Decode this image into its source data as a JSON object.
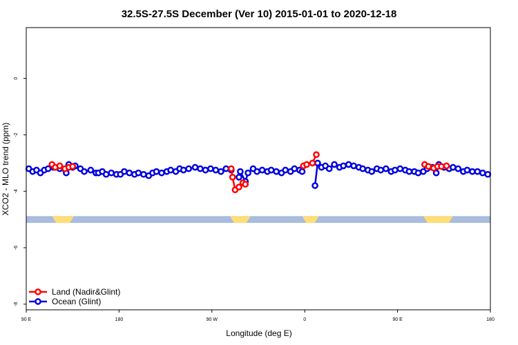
{
  "chart_data": {
    "type": "line",
    "title": "32.5S-27.5S December (Ver 10)   2015-01-01 to 2020-12-18",
    "xlabel": "Longitude (deg E)",
    "ylabel": "XCO2 - MLO trend (ppm)",
    "xlim": [
      90,
      450
    ],
    "ylim": [
      -8.2,
      1.8
    ],
    "x_ticks": [
      {
        "value": 90,
        "label": "90 E"
      },
      {
        "value": 162,
        "label": "180"
      },
      {
        "value": 234,
        "label": "90 W"
      },
      {
        "value": 306,
        "label": "0"
      },
      {
        "value": 378,
        "label": "90 E"
      },
      {
        "value": 450,
        "label": "180"
      }
    ],
    "y_ticks": [
      {
        "value": 0,
        "label": "0"
      },
      {
        "value": -2,
        "label": "-2"
      },
      {
        "value": -4,
        "label": "-4"
      },
      {
        "value": -6,
        "label": "-6"
      },
      {
        "value": -8,
        "label": "-8"
      }
    ],
    "grid": false,
    "legend_position": "bottom-left",
    "surface_band": {
      "y_top": -4.88,
      "y_bottom": -5.12,
      "ocean_color": "#a8bcdc",
      "land_color": "#ffdd77",
      "land_segments": [
        [
          110,
          127
        ],
        [
          248,
          264
        ],
        [
          304,
          317
        ],
        [
          398,
          421
        ]
      ]
    },
    "series": [
      {
        "name": "Land (Nadir&Glint)",
        "color": "#ff0000",
        "segments": [
          [
            [
              110,
              -3.05
            ],
            [
              112.5,
              -3.15
            ],
            [
              116,
              -3.1
            ],
            [
              120,
              -3.2
            ],
            [
              123,
              -3.15
            ],
            [
              126,
              -3.12
            ]
          ],
          [
            [
              249,
              -3.2
            ],
            [
              250,
              -3.5
            ],
            [
              252,
              -3.95
            ],
            [
              255,
              -3.85
            ],
            [
              258,
              -3.7
            ],
            [
              260,
              -3.75
            ]
          ],
          [
            [
              305,
              -3.1
            ],
            [
              307.5,
              -3.05
            ],
            [
              312,
              -3.0
            ],
            [
              315,
              -2.7
            ]
          ],
          [
            [
              399,
              -3.05
            ],
            [
              402,
              -3.12
            ],
            [
              406,
              -3.18
            ],
            [
              409,
              -3.12
            ],
            [
              412,
              -3.12
            ],
            [
              416,
              -3.1
            ]
          ]
        ]
      },
      {
        "name": "Ocean (Glint)",
        "color": "#0000dd",
        "segments": [
          [
            [
              92,
              -3.2
            ],
            [
              95,
              -3.3
            ],
            [
              98,
              -3.25
            ],
            [
              101,
              -3.35
            ],
            [
              104,
              -3.25
            ],
            [
              107,
              -3.2
            ],
            [
              111,
              -3.15
            ],
            [
              116,
              -3.2
            ],
            [
              121,
              -3.35
            ],
            [
              123,
              -3.05
            ],
            [
              126,
              -3.15
            ],
            [
              128,
              -3.1
            ],
            [
              132,
              -3.2
            ],
            [
              135,
              -3.3
            ],
            [
              140,
              -3.25
            ],
            [
              144,
              -3.35
            ],
            [
              146,
              -3.35
            ],
            [
              149,
              -3.3
            ],
            [
              152,
              -3.4
            ],
            [
              156,
              -3.35
            ],
            [
              160,
              -3.4
            ],
            [
              163,
              -3.4
            ],
            [
              166,
              -3.3
            ],
            [
              170,
              -3.35
            ],
            [
              174,
              -3.4
            ],
            [
              177,
              -3.35
            ],
            [
              181,
              -3.4
            ],
            [
              185,
              -3.45
            ],
            [
              188,
              -3.35
            ],
            [
              191,
              -3.3
            ],
            [
              195,
              -3.35
            ],
            [
              199,
              -3.3
            ],
            [
              202,
              -3.25
            ],
            [
              206,
              -3.3
            ],
            [
              209,
              -3.2
            ],
            [
              212,
              -3.25
            ],
            [
              216,
              -3.2
            ],
            [
              221,
              -3.15
            ],
            [
              225,
              -3.2
            ],
            [
              229,
              -3.25
            ],
            [
              233,
              -3.2
            ],
            [
              237,
              -3.25
            ],
            [
              241,
              -3.3
            ],
            [
              245,
              -3.2
            ],
            [
              249,
              -3.25
            ]
          ],
          [
            [
              255,
              -3.5
            ],
            [
              256,
              -3.3
            ],
            [
              260,
              -3.65
            ],
            [
              262,
              -3.35
            ],
            [
              266,
              -3.2
            ],
            [
              269,
              -3.3
            ],
            [
              273,
              -3.25
            ],
            [
              277,
              -3.3
            ],
            [
              280,
              -3.25
            ],
            [
              284,
              -3.3
            ],
            [
              288,
              -3.35
            ],
            [
              291,
              -3.25
            ],
            [
              295,
              -3.3
            ],
            [
              298,
              -3.2
            ],
            [
              302,
              -3.25
            ],
            [
              304,
              -3.3
            ]
          ],
          [
            [
              314,
              -3.8
            ],
            [
              316,
              -3.0
            ],
            [
              319,
              -3.15
            ],
            [
              322,
              -3.1
            ],
            [
              325,
              -3.2
            ],
            [
              329,
              -3.05
            ],
            [
              333,
              -3.15
            ],
            [
              336,
              -3.1
            ],
            [
              340,
              -3.05
            ],
            [
              344,
              -3.1
            ],
            [
              348,
              -3.15
            ],
            [
              351,
              -3.2
            ],
            [
              355,
              -3.25
            ],
            [
              358,
              -3.3
            ],
            [
              362,
              -3.2
            ],
            [
              365,
              -3.25
            ],
            [
              369,
              -3.2
            ],
            [
              373,
              -3.3
            ],
            [
              376,
              -3.25
            ],
            [
              380,
              -3.2
            ],
            [
              384,
              -3.25
            ],
            [
              387,
              -3.3
            ],
            [
              391,
              -3.3
            ],
            [
              394,
              -3.35
            ],
            [
              398,
              -3.3
            ],
            [
              401,
              -3.2
            ],
            [
              405,
              -3.15
            ],
            [
              408,
              -3.35
            ],
            [
              410,
              -3.05
            ],
            [
              414,
              -3.15
            ],
            [
              418,
              -3.2
            ],
            [
              421,
              -3.15
            ],
            [
              425,
              -3.2
            ],
            [
              429,
              -3.3
            ],
            [
              432,
              -3.25
            ],
            [
              436,
              -3.3
            ],
            [
              440,
              -3.3
            ],
            [
              444,
              -3.35
            ],
            [
              448,
              -3.4
            ]
          ]
        ]
      }
    ]
  }
}
